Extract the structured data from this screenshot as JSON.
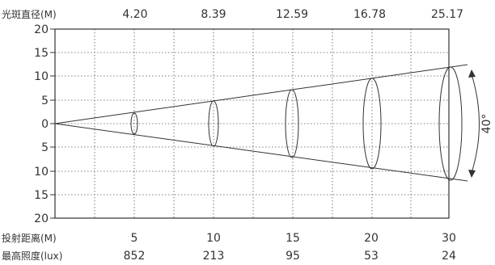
{
  "header": {
    "spot_diameter_label": "光斑直径(M)",
    "diameters": [
      "4.20",
      "8.39",
      "12.59",
      "16.78",
      "25.17"
    ]
  },
  "y_axis": {
    "ticks": [
      "20",
      "15",
      "10",
      "5",
      "0",
      "5",
      "10",
      "15",
      "20"
    ]
  },
  "footer": {
    "distance_label": "投射距离(M)",
    "distances": [
      "5",
      "10",
      "15",
      "20",
      "30"
    ],
    "illuminance_label": "最高照度(lux)",
    "illuminances": [
      "852",
      "213",
      "95",
      "53",
      "24"
    ]
  },
  "beam": {
    "angle_label": "40°",
    "line_color": "#333333"
  }
}
